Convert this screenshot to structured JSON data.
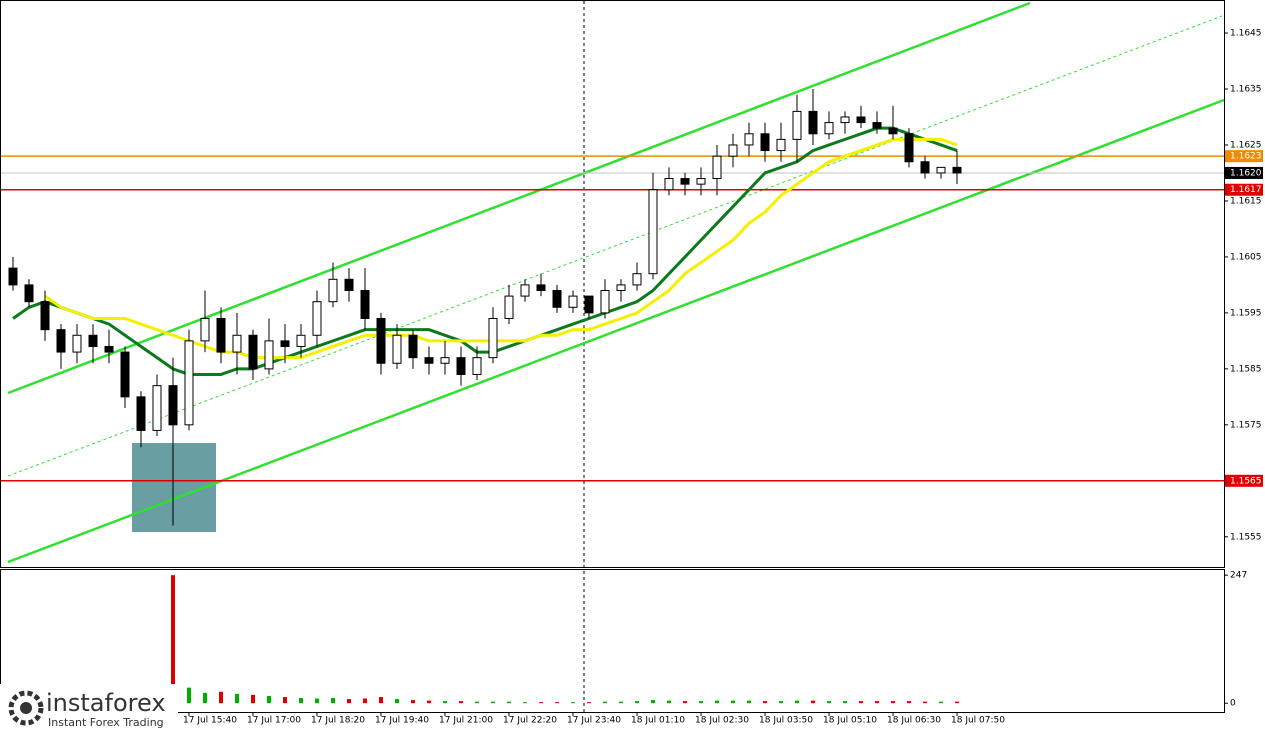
{
  "chart_data": {
    "type": "candlestick",
    "open": [
      1.1603,
      1.16,
      1.1597,
      1.1592,
      1.1588,
      1.1591,
      1.1589,
      1.1588,
      1.158,
      1.1574,
      1.1582,
      1.1575,
      1.159,
      1.1594,
      1.1588,
      1.1591,
      1.1585,
      1.159,
      1.1589,
      1.1591,
      1.1597,
      1.1601,
      1.1599,
      1.1594,
      1.1586,
      1.1591,
      1.1587,
      1.1586,
      1.1587,
      1.1584,
      1.1587,
      1.1594,
      1.1598,
      1.16,
      1.1599,
      1.1596,
      1.1598,
      1.1595,
      1.1599,
      1.16,
      1.1602,
      1.1617,
      1.1619,
      1.1618,
      1.1619,
      1.1623,
      1.1625,
      1.1627,
      1.1624,
      1.1626,
      1.1631,
      1.1627,
      1.1629,
      1.163,
      1.1629,
      1.1628,
      1.1627,
      1.1622,
      1.162,
      1.1621
    ],
    "high": [
      1.1605,
      1.1601,
      1.1599,
      1.1593,
      1.1593,
      1.1593,
      1.1592,
      1.1589,
      1.1581,
      1.1584,
      1.1587,
      1.1592,
      1.1599,
      1.1596,
      1.1595,
      1.1592,
      1.1594,
      1.1593,
      1.1593,
      1.1599,
      1.1604,
      1.1603,
      1.1603,
      1.1595,
      1.1593,
      1.1592,
      1.1589,
      1.159,
      1.1589,
      1.1589,
      1.1596,
      1.16,
      1.1601,
      1.1602,
      1.16,
      1.1599,
      1.1598,
      1.1601,
      1.1601,
      1.1604,
      1.162,
      1.1621,
      1.162,
      1.1621,
      1.1625,
      1.1627,
      1.1629,
      1.1629,
      1.1629,
      1.1634,
      1.1635,
      1.1631,
      1.1631,
      1.1632,
      1.1631,
      1.1632,
      1.1628,
      1.1623,
      1.1621,
      1.1624
    ],
    "low": [
      1.1599,
      1.1596,
      1.159,
      1.1585,
      1.1586,
      1.1586,
      1.1586,
      1.1578,
      1.1571,
      1.1573,
      1.1557,
      1.1574,
      1.1588,
      1.1586,
      1.1584,
      1.1583,
      1.1584,
      1.1586,
      1.1587,
      1.1589,
      1.1596,
      1.1597,
      1.1592,
      1.1584,
      1.1585,
      1.1585,
      1.1584,
      1.1584,
      1.1582,
      1.1583,
      1.1586,
      1.1593,
      1.1597,
      1.1598,
      1.1595,
      1.1595,
      1.1594,
      1.1594,
      1.1597,
      1.1599,
      1.1601,
      1.1616,
      1.1616,
      1.1616,
      1.1616,
      1.1621,
      1.1623,
      1.1622,
      1.1622,
      1.1622,
      1.1625,
      1.1626,
      1.1627,
      1.1628,
      1.1627,
      1.1626,
      1.1621,
      1.1619,
      1.1619,
      1.1618
    ],
    "close": [
      1.16,
      1.1597,
      1.1592,
      1.1588,
      1.1591,
      1.1589,
      1.1588,
      1.158,
      1.1574,
      1.1582,
      1.1575,
      1.159,
      1.1594,
      1.1588,
      1.1591,
      1.1585,
      1.159,
      1.1589,
      1.1591,
      1.1597,
      1.1601,
      1.1599,
      1.1594,
      1.1586,
      1.1591,
      1.1587,
      1.1586,
      1.1587,
      1.1584,
      1.1587,
      1.1594,
      1.1598,
      1.16,
      1.1599,
      1.1596,
      1.1598,
      1.1595,
      1.1599,
      1.16,
      1.1602,
      1.1617,
      1.1619,
      1.1618,
      1.1619,
      1.1623,
      1.1625,
      1.1627,
      1.1624,
      1.1626,
      1.1631,
      1.1627,
      1.1629,
      1.163,
      1.1629,
      1.1628,
      1.1627,
      1.1622,
      1.162,
      1.1621,
      1.162
    ],
    "ylim": [
      1.15496,
      1.16509
    ],
    "yticks": [
      1.1555,
      1.1575,
      1.1585,
      1.1595,
      1.1605,
      1.1615,
      1.1625,
      1.1635,
      1.1645
    ],
    "xticks": [
      {
        "value": 11,
        "label": "17 Jul 15:40"
      },
      {
        "value": 15,
        "label": "17 Jul 17:00"
      },
      {
        "value": 19,
        "label": "17 Jul 18:20"
      },
      {
        "value": 23,
        "label": "17 Jul 19:40"
      },
      {
        "value": 27,
        "label": "17 Jul 21:00"
      },
      {
        "value": 31,
        "label": "17 Jul 22:20"
      },
      {
        "value": 35,
        "label": "17 Jul 23:40"
      },
      {
        "value": 39,
        "label": "18 Jul 01:10"
      },
      {
        "value": 43,
        "label": "18 Jul 02:30"
      },
      {
        "value": 47,
        "label": "18 Jul 03:50"
      },
      {
        "value": 51,
        "label": "18 Jul 05:10"
      },
      {
        "value": 55,
        "label": "18 Jul 06:30"
      },
      {
        "value": 59,
        "label": "18 Jul 07:50"
      }
    ],
    "lines": [
      {
        "color": "#0b7a1c",
        "values": [
          1.1594,
          1.1596,
          1.1597,
          1.1596,
          1.1595,
          1.1594,
          1.1593,
          1.1591,
          1.1589,
          1.1587,
          1.1585,
          1.1584,
          1.1584,
          1.1584,
          1.1585,
          1.1585,
          1.1586,
          1.1587,
          1.1588,
          1.1589,
          1.159,
          1.1591,
          1.1592,
          1.1592,
          1.1592,
          1.1592,
          1.1592,
          1.1591,
          1.159,
          1.1588,
          1.1588,
          1.1589,
          1.159,
          1.1591,
          1.1592,
          1.1593,
          1.1594,
          1.1595,
          1.1596,
          1.1597,
          1.1599,
          1.1602,
          1.1605,
          1.1608,
          1.1611,
          1.1614,
          1.1617,
          1.162,
          1.1621,
          1.1622,
          1.1624,
          1.1625,
          1.1626,
          1.1627,
          1.1628,
          1.1628,
          1.1627,
          1.1626,
          1.1625,
          1.1624
        ]
      },
      {
        "color": "#f4f000",
        "values": [
          null,
          null,
          1.1598,
          1.1596,
          1.1595,
          1.1594,
          1.1594,
          1.1594,
          1.1593,
          1.1592,
          1.1591,
          1.159,
          1.1589,
          1.1588,
          1.1588,
          1.1587,
          1.1587,
          1.1587,
          1.1587,
          1.1588,
          1.1589,
          1.159,
          1.1591,
          1.1591,
          1.1591,
          1.1591,
          1.159,
          1.159,
          1.159,
          1.159,
          1.159,
          1.159,
          1.159,
          1.1591,
          1.1591,
          1.1592,
          1.1592,
          1.1593,
          1.1594,
          1.1595,
          1.1597,
          1.1599,
          1.1602,
          1.1604,
          1.1606,
          1.1608,
          1.1611,
          1.1613,
          1.1616,
          1.1618,
          1.162,
          1.1622,
          1.1623,
          1.1624,
          1.1625,
          1.1626,
          1.1626,
          1.1626,
          1.1626,
          1.1625
        ]
      }
    ],
    "levels": [
      {
        "value": 1.1623,
        "color": "#f08a00"
      },
      {
        "value": 1.1617,
        "color": "#e00000"
      },
      {
        "value": 1.1565,
        "color": "#e00000"
      }
    ],
    "current_price": {
      "value": 1.162,
      "label": "1.1620"
    },
    "volume": {
      "values": [
        null,
        null,
        null,
        null,
        null,
        null,
        null,
        null,
        null,
        null,
        247,
        30,
        20,
        22,
        18,
        16,
        14,
        12,
        10,
        9,
        10,
        8,
        9,
        12,
        8,
        6,
        5,
        4,
        4,
        3,
        3,
        3,
        2,
        2,
        2,
        2,
        2,
        3,
        3,
        4,
        6,
        5,
        4,
        4,
        5,
        5,
        5,
        4,
        4,
        5,
        5,
        4,
        4,
        4,
        4,
        4,
        4,
        3,
        3,
        3
      ],
      "ylim": [
        -17,
        257
      ],
      "yticks": [
        0,
        247
      ],
      "up_color": "#00b000",
      "down_color": "#e00000"
    }
  },
  "logo": {
    "name": "instaforex",
    "tagline": "Instant Forex Trading"
  }
}
